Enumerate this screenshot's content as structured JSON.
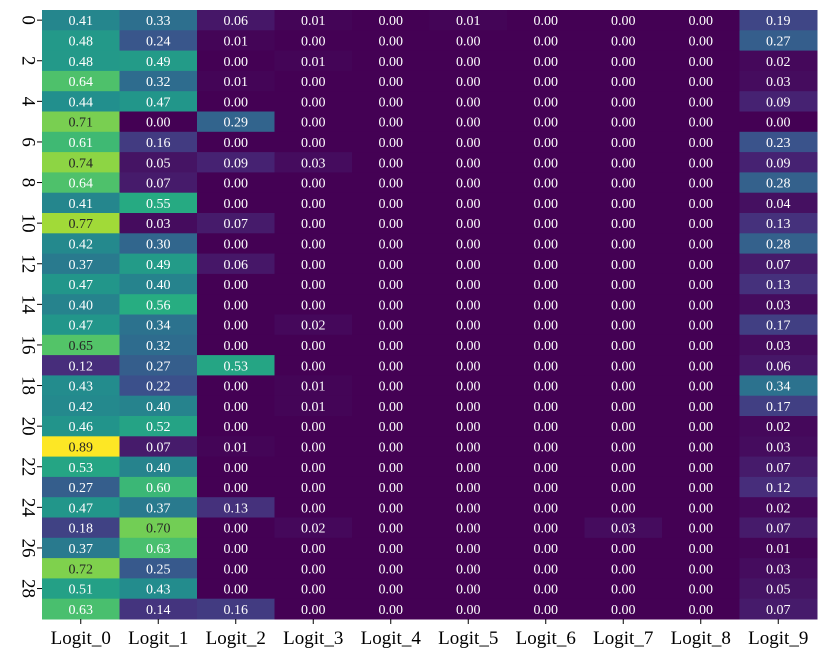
{
  "chart_data": {
    "type": "heatmap",
    "title": "",
    "xlabel": "",
    "ylabel": "",
    "colormap": "viridis",
    "vmin": 0.0,
    "vmax": 0.89,
    "x_labels": [
      "Logit_0",
      "Logit_1",
      "Logit_2",
      "Logit_3",
      "Logit_4",
      "Logit_5",
      "Logit_6",
      "Logit_7",
      "Logit_8",
      "Logit_9"
    ],
    "y_tick_labels": [
      "0",
      "2",
      "4",
      "6",
      "8",
      "10",
      "12",
      "14",
      "16",
      "18",
      "20",
      "22",
      "24",
      "26",
      "28"
    ],
    "y_tick_rows": [
      0,
      2,
      4,
      6,
      8,
      10,
      12,
      14,
      16,
      18,
      20,
      22,
      24,
      26,
      28
    ],
    "values": [
      [
        0.41,
        0.33,
        0.06,
        0.01,
        0.0,
        0.01,
        0.0,
        0.0,
        0.0,
        0.19
      ],
      [
        0.48,
        0.24,
        0.01,
        0.0,
        0.0,
        0.0,
        0.0,
        0.0,
        0.0,
        0.27
      ],
      [
        0.48,
        0.49,
        0.0,
        0.01,
        0.0,
        0.0,
        0.0,
        0.0,
        0.0,
        0.02
      ],
      [
        0.64,
        0.32,
        0.01,
        0.0,
        0.0,
        0.0,
        0.0,
        0.0,
        0.0,
        0.03
      ],
      [
        0.44,
        0.47,
        0.0,
        0.0,
        0.0,
        0.0,
        0.0,
        0.0,
        0.0,
        0.09
      ],
      [
        0.71,
        0.0,
        0.29,
        0.0,
        0.0,
        0.0,
        0.0,
        0.0,
        0.0,
        0.0
      ],
      [
        0.61,
        0.16,
        0.0,
        0.0,
        0.0,
        0.0,
        0.0,
        0.0,
        0.0,
        0.23
      ],
      [
        0.74,
        0.05,
        0.09,
        0.03,
        0.0,
        0.0,
        0.0,
        0.0,
        0.0,
        0.09
      ],
      [
        0.64,
        0.07,
        0.0,
        0.0,
        0.0,
        0.0,
        0.0,
        0.0,
        0.0,
        0.28
      ],
      [
        0.41,
        0.55,
        0.0,
        0.0,
        0.0,
        0.0,
        0.0,
        0.0,
        0.0,
        0.04
      ],
      [
        0.77,
        0.03,
        0.07,
        0.0,
        0.0,
        0.0,
        0.0,
        0.0,
        0.0,
        0.13
      ],
      [
        0.42,
        0.3,
        0.0,
        0.0,
        0.0,
        0.0,
        0.0,
        0.0,
        0.0,
        0.28
      ],
      [
        0.37,
        0.49,
        0.06,
        0.0,
        0.0,
        0.0,
        0.0,
        0.0,
        0.0,
        0.07
      ],
      [
        0.47,
        0.4,
        0.0,
        0.0,
        0.0,
        0.0,
        0.0,
        0.0,
        0.0,
        0.13
      ],
      [
        0.4,
        0.56,
        0.0,
        0.0,
        0.0,
        0.0,
        0.0,
        0.0,
        0.0,
        0.03
      ],
      [
        0.47,
        0.34,
        0.0,
        0.02,
        0.0,
        0.0,
        0.0,
        0.0,
        0.0,
        0.17
      ],
      [
        0.65,
        0.32,
        0.0,
        0.0,
        0.0,
        0.0,
        0.0,
        0.0,
        0.0,
        0.03
      ],
      [
        0.12,
        0.27,
        0.53,
        0.0,
        0.0,
        0.0,
        0.0,
        0.0,
        0.0,
        0.06
      ],
      [
        0.43,
        0.22,
        0.0,
        0.01,
        0.0,
        0.0,
        0.0,
        0.0,
        0.0,
        0.34
      ],
      [
        0.42,
        0.4,
        0.0,
        0.01,
        0.0,
        0.0,
        0.0,
        0.0,
        0.0,
        0.17
      ],
      [
        0.46,
        0.52,
        0.0,
        0.0,
        0.0,
        0.0,
        0.0,
        0.0,
        0.0,
        0.02
      ],
      [
        0.89,
        0.07,
        0.01,
        0.0,
        0.0,
        0.0,
        0.0,
        0.0,
        0.0,
        0.03
      ],
      [
        0.53,
        0.4,
        0.0,
        0.0,
        0.0,
        0.0,
        0.0,
        0.0,
        0.0,
        0.07
      ],
      [
        0.27,
        0.6,
        0.0,
        0.0,
        0.0,
        0.0,
        0.0,
        0.0,
        0.0,
        0.12
      ],
      [
        0.47,
        0.37,
        0.13,
        0.0,
        0.0,
        0.0,
        0.0,
        0.0,
        0.0,
        0.02
      ],
      [
        0.18,
        0.7,
        0.0,
        0.02,
        0.0,
        0.0,
        0.0,
        0.03,
        0.0,
        0.07
      ],
      [
        0.37,
        0.63,
        0.0,
        0.0,
        0.0,
        0.0,
        0.0,
        0.0,
        0.0,
        0.01
      ],
      [
        0.72,
        0.25,
        0.0,
        0.0,
        0.0,
        0.0,
        0.0,
        0.0,
        0.0,
        0.03
      ],
      [
        0.51,
        0.43,
        0.0,
        0.0,
        0.0,
        0.0,
        0.0,
        0.0,
        0.0,
        0.05
      ],
      [
        0.63,
        0.14,
        0.16,
        0.0,
        0.0,
        0.0,
        0.0,
        0.0,
        0.0,
        0.07
      ]
    ],
    "grid": false,
    "legend": "none"
  }
}
